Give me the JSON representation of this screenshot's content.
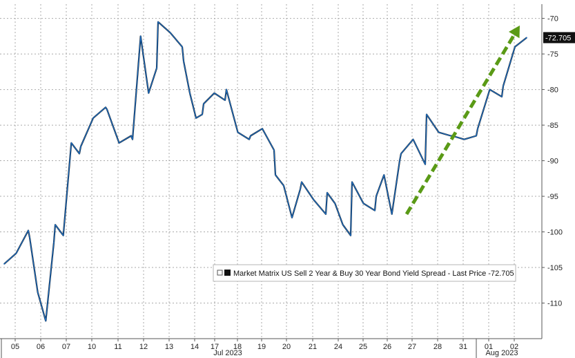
{
  "chart_data": {
    "type": "line",
    "title": "",
    "xlabel": "",
    "ylabel": "",
    "y_axis_position": "right",
    "ylim": [
      -115,
      -68
    ],
    "yticks": [
      -70,
      -75,
      -80,
      -85,
      -90,
      -95,
      -100,
      -105,
      -110
    ],
    "grid": true,
    "x_tick_labels": [
      "05",
      "06",
      "07",
      "10",
      "11",
      "12",
      "13",
      "14",
      "17",
      "18",
      "19",
      "20",
      "21",
      "24",
      "25",
      "26",
      "27",
      "28",
      "31",
      "01",
      "02"
    ],
    "month_labels": [
      "Jul 2023",
      "Aug 2023"
    ],
    "series": [
      {
        "name": "Market Matrix US Sell 2 Year & Buy 30 Year Bond Yield Spread - Last Price",
        "color": "#1e6fc4",
        "x": [
          "05",
          "05",
          "05",
          "06",
          "06",
          "06",
          "06",
          "07",
          "07",
          "07",
          "07",
          "10",
          "10",
          "10",
          "11",
          "11",
          "11",
          "12",
          "12",
          "12",
          "12",
          "13",
          "13",
          "13",
          "14",
          "14",
          "14",
          "14",
          "17",
          "17",
          "17",
          "18",
          "18",
          "18",
          "19",
          "19",
          "19",
          "20",
          "20",
          "20",
          "20",
          "21",
          "21",
          "21",
          "24",
          "24",
          "24",
          "24",
          "25",
          "25",
          "25",
          "26",
          "26",
          "26",
          "26",
          "27",
          "27",
          "27",
          "28",
          "28",
          "28",
          "31",
          "31",
          "31",
          "01",
          "01",
          "01",
          "02",
          "02",
          "02"
        ],
        "values": [
          -104.5,
          -103.0,
          -99.8,
          -100.8,
          -108.5,
          -112.5,
          -101.5,
          -99.0,
          -100.5,
          -87.5,
          -89.0,
          -88.0,
          -84.0,
          -82.5,
          -82.8,
          -87.5,
          -86.5,
          -87.0,
          -72.5,
          -80.5,
          -77.0,
          -70.5,
          -72.0,
          -74.0,
          -76.0,
          -80.5,
          -84.0,
          -83.5,
          -82.0,
          -80.5,
          -81.5,
          -80.0,
          -86.0,
          -87.0,
          -86.5,
          -85.5,
          -88.5,
          -92.0,
          -93.5,
          -98.0,
          -94.0,
          -93.0,
          -95.5,
          -97.5,
          -94.5,
          -96.0,
          -99.0,
          -100.5,
          -93.0,
          -96.0,
          -97.0,
          -95.0,
          -92.0,
          -97.5,
          -90.0,
          -89.0,
          -87.0,
          -90.5,
          -83.5,
          -86.0,
          -86.5,
          -86.5,
          -87.0,
          -86.5,
          -85.5,
          -80.0,
          -81.0,
          -79.5,
          -74.0,
          -72.705
        ]
      }
    ],
    "annotations": [
      {
        "type": "arrow",
        "style": "dashed",
        "color": "#5a9a16",
        "from": {
          "x": "27",
          "y": -97.5
        },
        "to": {
          "x": "02",
          "y": -71.0
        }
      }
    ],
    "legend": {
      "placement": "lower-right",
      "text": "Market Matrix US Sell 2 Year & Buy 30 Year Bond Yield Spread - Last Price -72.705"
    },
    "last_price_label": "-72.705"
  }
}
